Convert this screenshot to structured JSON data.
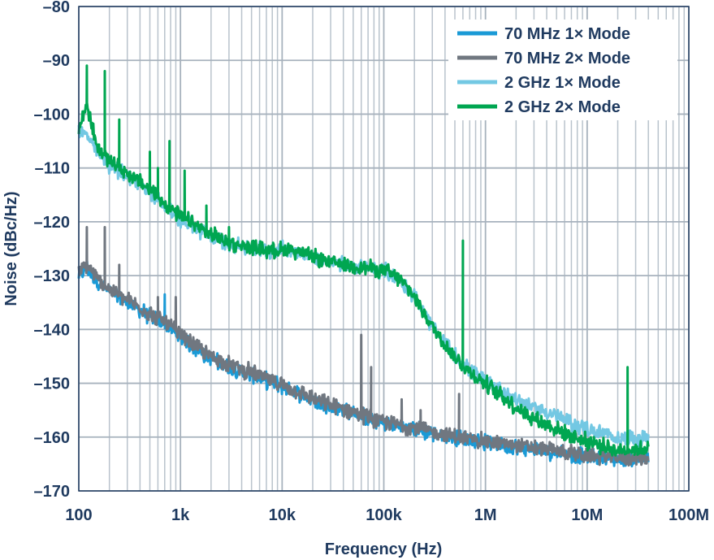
{
  "chart_data": {
    "type": "line",
    "xlabel": "Frequency (Hz)",
    "ylabel": "Noise (dBc/Hz)",
    "xscale": "log",
    "xlim": [
      100,
      100000000
    ],
    "ylim": [
      -170,
      -80
    ],
    "grid": true,
    "legend_position": "top-right",
    "x_ticks": [
      {
        "value": 100,
        "label": "100"
      },
      {
        "value": 1000,
        "label": "1k"
      },
      {
        "value": 10000,
        "label": "10k"
      },
      {
        "value": 100000,
        "label": "100k"
      },
      {
        "value": 1000000,
        "label": "1M"
      },
      {
        "value": 10000000,
        "label": "10M"
      },
      {
        "value": 100000000,
        "label": "100M"
      }
    ],
    "y_ticks": [
      {
        "value": -80,
        "label": "–80"
      },
      {
        "value": -90,
        "label": "–90"
      },
      {
        "value": -100,
        "label": "–100"
      },
      {
        "value": -110,
        "label": "–110"
      },
      {
        "value": -120,
        "label": "–120"
      },
      {
        "value": -130,
        "label": "–130"
      },
      {
        "value": -140,
        "label": "–140"
      },
      {
        "value": -150,
        "label": "–150"
      },
      {
        "value": -160,
        "label": "–160"
      },
      {
        "value": -170,
        "label": "–170"
      }
    ],
    "series": [
      {
        "name": "70 MHz 1× Mode",
        "color": "#1a9ad6",
        "x": [
          100,
          120,
          150,
          200,
          300,
          500,
          700,
          1000,
          1500,
          2000,
          3000,
          5000,
          7000,
          10000,
          20000,
          30000,
          50000,
          70000,
          100000,
          200000,
          300000,
          500000,
          700000,
          1000000,
          2000000,
          3000000,
          5000000,
          7000000,
          10000000,
          20000000,
          40000000
        ],
        "y": [
          -130,
          -128.5,
          -131,
          -133,
          -135,
          -137.5,
          -139,
          -141.5,
          -144,
          -145.5,
          -147,
          -148.5,
          -149.5,
          -150.5,
          -153,
          -154.5,
          -155.5,
          -156.5,
          -157.5,
          -158.5,
          -159.3,
          -160,
          -160.5,
          -161,
          -161.8,
          -162.3,
          -162.8,
          -163.2,
          -163.6,
          -164,
          -164
        ]
      },
      {
        "name": "70 MHz 2× Mode",
        "color": "#707780",
        "x": [
          100,
          120,
          150,
          200,
          300,
          500,
          700,
          1000,
          1500,
          2000,
          3000,
          5000,
          7000,
          10000,
          20000,
          30000,
          50000,
          70000,
          100000,
          200000,
          300000,
          500000,
          700000,
          1000000,
          2000000,
          3000000,
          5000000,
          7000000,
          10000000,
          20000000,
          40000000
        ],
        "y": [
          -129.5,
          -128,
          -130.5,
          -132.5,
          -134.5,
          -137,
          -138.5,
          -141,
          -143.5,
          -145,
          -146.5,
          -148,
          -149.2,
          -150.2,
          -152.8,
          -154.2,
          -155.2,
          -156.2,
          -157.2,
          -158.2,
          -159,
          -159.8,
          -160.3,
          -160.8,
          -161.5,
          -162,
          -162.5,
          -163,
          -163.4,
          -163.8,
          -163.8
        ]
      },
      {
        "name": "2 GHz 1× Mode",
        "color": "#73c8e3",
        "x": [
          100,
          120,
          150,
          200,
          300,
          500,
          700,
          1000,
          1500,
          2000,
          3000,
          5000,
          7000,
          10000,
          12000,
          20000,
          30000,
          50000,
          70000,
          100000,
          150000,
          200000,
          300000,
          500000,
          700000,
          1000000,
          1500000,
          2000000,
          3000000,
          5000000,
          7000000,
          10000000,
          20000000,
          40000000
        ],
        "y": [
          -103,
          -104,
          -107,
          -109.5,
          -111.5,
          -114.5,
          -117,
          -119.5,
          -121.5,
          -123,
          -124,
          -125,
          -125.3,
          -125.2,
          -125,
          -126.5,
          -127.5,
          -128.2,
          -128.5,
          -129,
          -131,
          -134,
          -139.5,
          -145,
          -147.5,
          -149.5,
          -151.5,
          -153,
          -154.5,
          -156,
          -157.5,
          -158.5,
          -160.3,
          -160
        ]
      },
      {
        "name": "2 GHz 2× Mode",
        "color": "#00a651",
        "x": [
          100,
          120,
          150,
          200,
          300,
          500,
          700,
          1000,
          1500,
          2000,
          3000,
          5000,
          7000,
          10000,
          12000,
          20000,
          30000,
          50000,
          70000,
          100000,
          150000,
          200000,
          300000,
          500000,
          700000,
          1000000,
          1500000,
          2000000,
          3000000,
          5000000,
          7000000,
          10000000,
          20000000,
          40000000
        ],
        "y": [
          -103,
          -98,
          -106,
          -108.5,
          -111,
          -114,
          -116.5,
          -119,
          -121,
          -122.5,
          -123.8,
          -124.8,
          -125.2,
          -125.2,
          -125,
          -126.5,
          -127.5,
          -128.2,
          -128.5,
          -129,
          -131,
          -134,
          -139.5,
          -145.2,
          -148,
          -150,
          -152.5,
          -154.5,
          -156.5,
          -158.5,
          -159.8,
          -160.8,
          -162.5,
          -162
        ]
      }
    ],
    "spurs": [
      {
        "series": 3,
        "x": 120,
        "y": -91
      },
      {
        "series": 3,
        "x": 180,
        "y": -92
      },
      {
        "series": 3,
        "x": 250,
        "y": -101
      },
      {
        "series": 3,
        "x": 500,
        "y": -107
      },
      {
        "series": 3,
        "x": 600,
        "y": -110
      },
      {
        "series": 3,
        "x": 780,
        "y": -105
      },
      {
        "series": 3,
        "x": 1100,
        "y": -110.5
      },
      {
        "series": 3,
        "x": 1800,
        "y": -117
      },
      {
        "series": 3,
        "x": 3000,
        "y": -121
      },
      {
        "series": 3,
        "x": 600000,
        "y": -123.5
      },
      {
        "series": 3,
        "x": 25000000,
        "y": -147
      },
      {
        "series": 1,
        "x": 120,
        "y": -121
      },
      {
        "series": 1,
        "x": 180,
        "y": -121
      },
      {
        "series": 1,
        "x": 250,
        "y": -128
      },
      {
        "series": 1,
        "x": 600,
        "y": -134
      },
      {
        "series": 1,
        "x": 900,
        "y": -134
      },
      {
        "series": 1,
        "x": 60000,
        "y": -141
      },
      {
        "series": 1,
        "x": 75000,
        "y": -147
      },
      {
        "series": 1,
        "x": 150000,
        "y": -153
      },
      {
        "series": 1,
        "x": 230000,
        "y": -155
      },
      {
        "series": 1,
        "x": 550000,
        "y": -152
      },
      {
        "series": 0,
        "x": 700,
        "y": -133.5
      }
    ]
  }
}
